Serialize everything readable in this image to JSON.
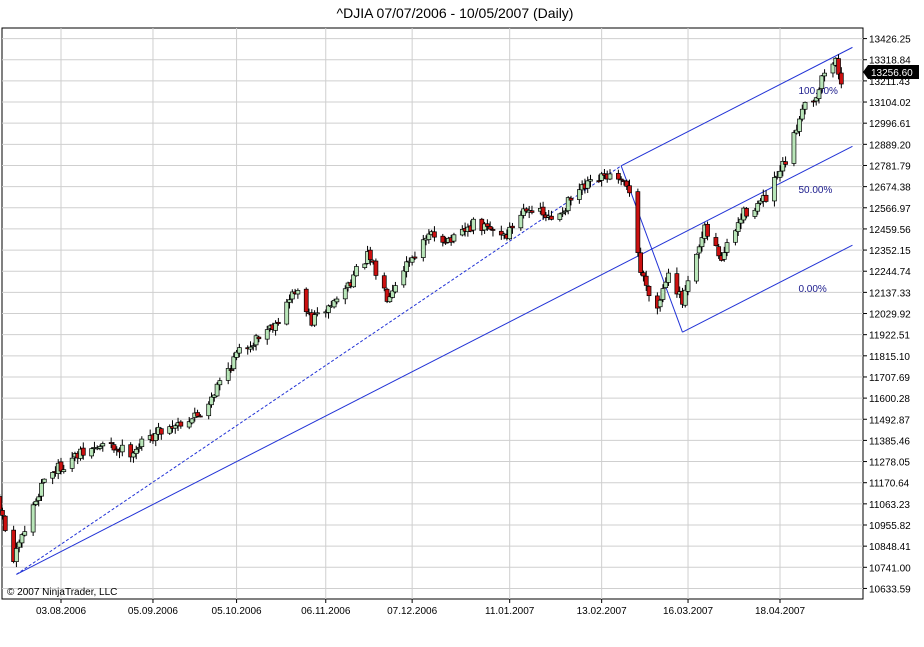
{
  "chart_data": {
    "type": "candlestick",
    "title": "^DJIA  07/07/2006 - 10/05/2007 (Daily)",
    "symbol": "^DJIA",
    "interval": "Daily",
    "copyright": "© 2007 NinjaTrader, LLC",
    "ylim": [
      10580,
      13480
    ],
    "y_ticks": [
      10633.59,
      10741.0,
      10848.41,
      10955.82,
      11063.23,
      11170.64,
      11278.05,
      11385.46,
      11492.87,
      11600.28,
      11707.69,
      11815.1,
      11922.51,
      12029.92,
      12137.33,
      12244.74,
      12352.15,
      12459.56,
      12566.97,
      12674.38,
      12781.79,
      12889.2,
      12996.61,
      13104.02,
      13211.43,
      13318.84,
      13426.25
    ],
    "x_ticks": [
      {
        "label": "03.08.2006",
        "date": "2006-08-03"
      },
      {
        "label": "05.09.2006",
        "date": "2006-09-05"
      },
      {
        "label": "05.10.2006",
        "date": "2006-10-05"
      },
      {
        "label": "06.11.2006",
        "date": "2006-11-06"
      },
      {
        "label": "07.12.2006",
        "date": "2006-12-07"
      },
      {
        "label": "11.01.2007",
        "date": "2007-01-11"
      },
      {
        "label": "13.02.2007",
        "date": "2007-02-13"
      },
      {
        "label": "16.03.2007",
        "date": "2007-03-16"
      },
      {
        "label": "18.04.2007",
        "date": "2007-04-18"
      }
    ],
    "last_price": "13256.60",
    "grid": true,
    "path": [
      {
        "date": "2006-07-10",
        "value": 11150
      },
      {
        "date": "2006-07-17",
        "value": 10770
      },
      {
        "date": "2006-07-28",
        "value": 11200
      },
      {
        "date": "2006-08-08",
        "value": 11300
      },
      {
        "date": "2006-08-18",
        "value": 11360
      },
      {
        "date": "2006-08-28",
        "value": 11330
      },
      {
        "date": "2006-09-08",
        "value": 11440
      },
      {
        "date": "2006-09-22",
        "value": 11520
      },
      {
        "date": "2006-10-05",
        "value": 11820
      },
      {
        "date": "2006-10-20",
        "value": 12000
      },
      {
        "date": "2006-10-26",
        "value": 12150
      },
      {
        "date": "2006-11-01",
        "value": 11990
      },
      {
        "date": "2006-11-10",
        "value": 12100
      },
      {
        "date": "2006-11-21",
        "value": 12320
      },
      {
        "date": "2006-11-28",
        "value": 12120
      },
      {
        "date": "2006-12-05",
        "value": 12290
      },
      {
        "date": "2006-12-14",
        "value": 12430
      },
      {
        "date": "2006-12-22",
        "value": 12400
      },
      {
        "date": "2006-12-29",
        "value": 12480
      },
      {
        "date": "2007-01-10",
        "value": 12430
      },
      {
        "date": "2007-01-17",
        "value": 12580
      },
      {
        "date": "2007-01-26",
        "value": 12500
      },
      {
        "date": "2007-02-05",
        "value": 12650
      },
      {
        "date": "2007-02-15",
        "value": 12730
      },
      {
        "date": "2007-02-23",
        "value": 12660
      },
      {
        "date": "2007-02-27",
        "value": 12240
      },
      {
        "date": "2007-03-05",
        "value": 12060
      },
      {
        "date": "2007-03-09",
        "value": 12260
      },
      {
        "date": "2007-03-14",
        "value": 12080
      },
      {
        "date": "2007-03-22",
        "value": 12450
      },
      {
        "date": "2007-03-28",
        "value": 12310
      },
      {
        "date": "2007-04-05",
        "value": 12540
      },
      {
        "date": "2007-04-13",
        "value": 12610
      },
      {
        "date": "2007-04-20",
        "value": 12800
      },
      {
        "date": "2007-04-23",
        "value": 12920
      },
      {
        "date": "2007-04-26",
        "value": 13090
      },
      {
        "date": "2007-05-01",
        "value": 13140
      },
      {
        "date": "2007-05-04",
        "value": 13260
      },
      {
        "date": "2007-05-08",
        "value": 13310
      },
      {
        "date": "2007-05-10",
        "value": 13220
      }
    ],
    "pitchfork": {
      "pivots": [
        {
          "date": "2006-07-18",
          "value": 10705
        },
        {
          "date": "2007-02-20",
          "value": 12780
        },
        {
          "date": "2007-03-14",
          "value": 11935
        }
      ],
      "line_end_date": "2007-05-14",
      "levels": [
        "100.00%",
        "50.00%",
        "0.00%"
      ]
    },
    "colors": {
      "up": "#b9e6b9",
      "down": "#cc1010",
      "wick": "#000000",
      "pitchfork": "#2233d6",
      "grid": "#cfcfcf",
      "price_tag": "#000000",
      "label_text": "#1a1a8c"
    }
  }
}
